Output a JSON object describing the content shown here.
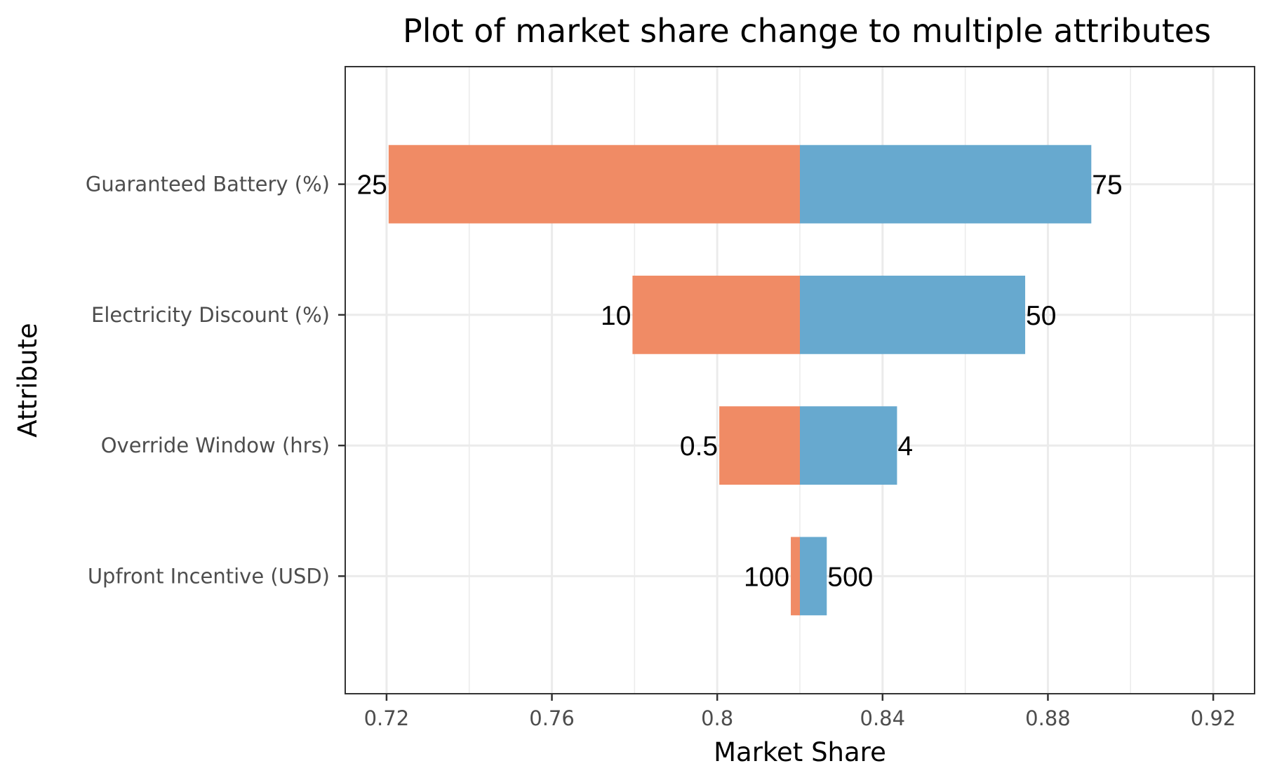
{
  "chart_data": {
    "type": "bar",
    "orientation": "horizontal",
    "title": "Plot of market share change to multiple attributes",
    "xlabel": "Market Share",
    "ylabel": "Attribute",
    "baseline": 0.82,
    "xlim": [
      0.71,
      0.93
    ],
    "xticks": [
      0.72,
      0.76,
      0.8,
      0.84,
      0.88,
      0.92
    ],
    "xtick_labels": [
      "0.72",
      "0.76",
      "0.8",
      "0.84",
      "0.88",
      "0.92"
    ],
    "grid": true,
    "legend": "none",
    "low_color": "#f08b65",
    "high_color": "#67a9cf",
    "categories": [
      "Guaranteed Battery (%)",
      "Electricity Discount (%)",
      "Override Window (hrs)",
      "Upfront Incentive (USD)"
    ],
    "rows": [
      {
        "category": "Guaranteed Battery (%)",
        "low": 0.7205,
        "high": 0.8905,
        "low_label": "25",
        "high_label": "75"
      },
      {
        "category": "Electricity Discount (%)",
        "low": 0.7795,
        "high": 0.8745,
        "low_label": "10",
        "high_label": "50"
      },
      {
        "category": "Override Window (hrs)",
        "low": 0.8005,
        "high": 0.8435,
        "low_label": "0.5",
        "high_label": "4"
      },
      {
        "category": "Upfront Incentive (USD)",
        "low": 0.8178,
        "high": 0.8265,
        "low_label": "100",
        "high_label": "500"
      }
    ]
  }
}
